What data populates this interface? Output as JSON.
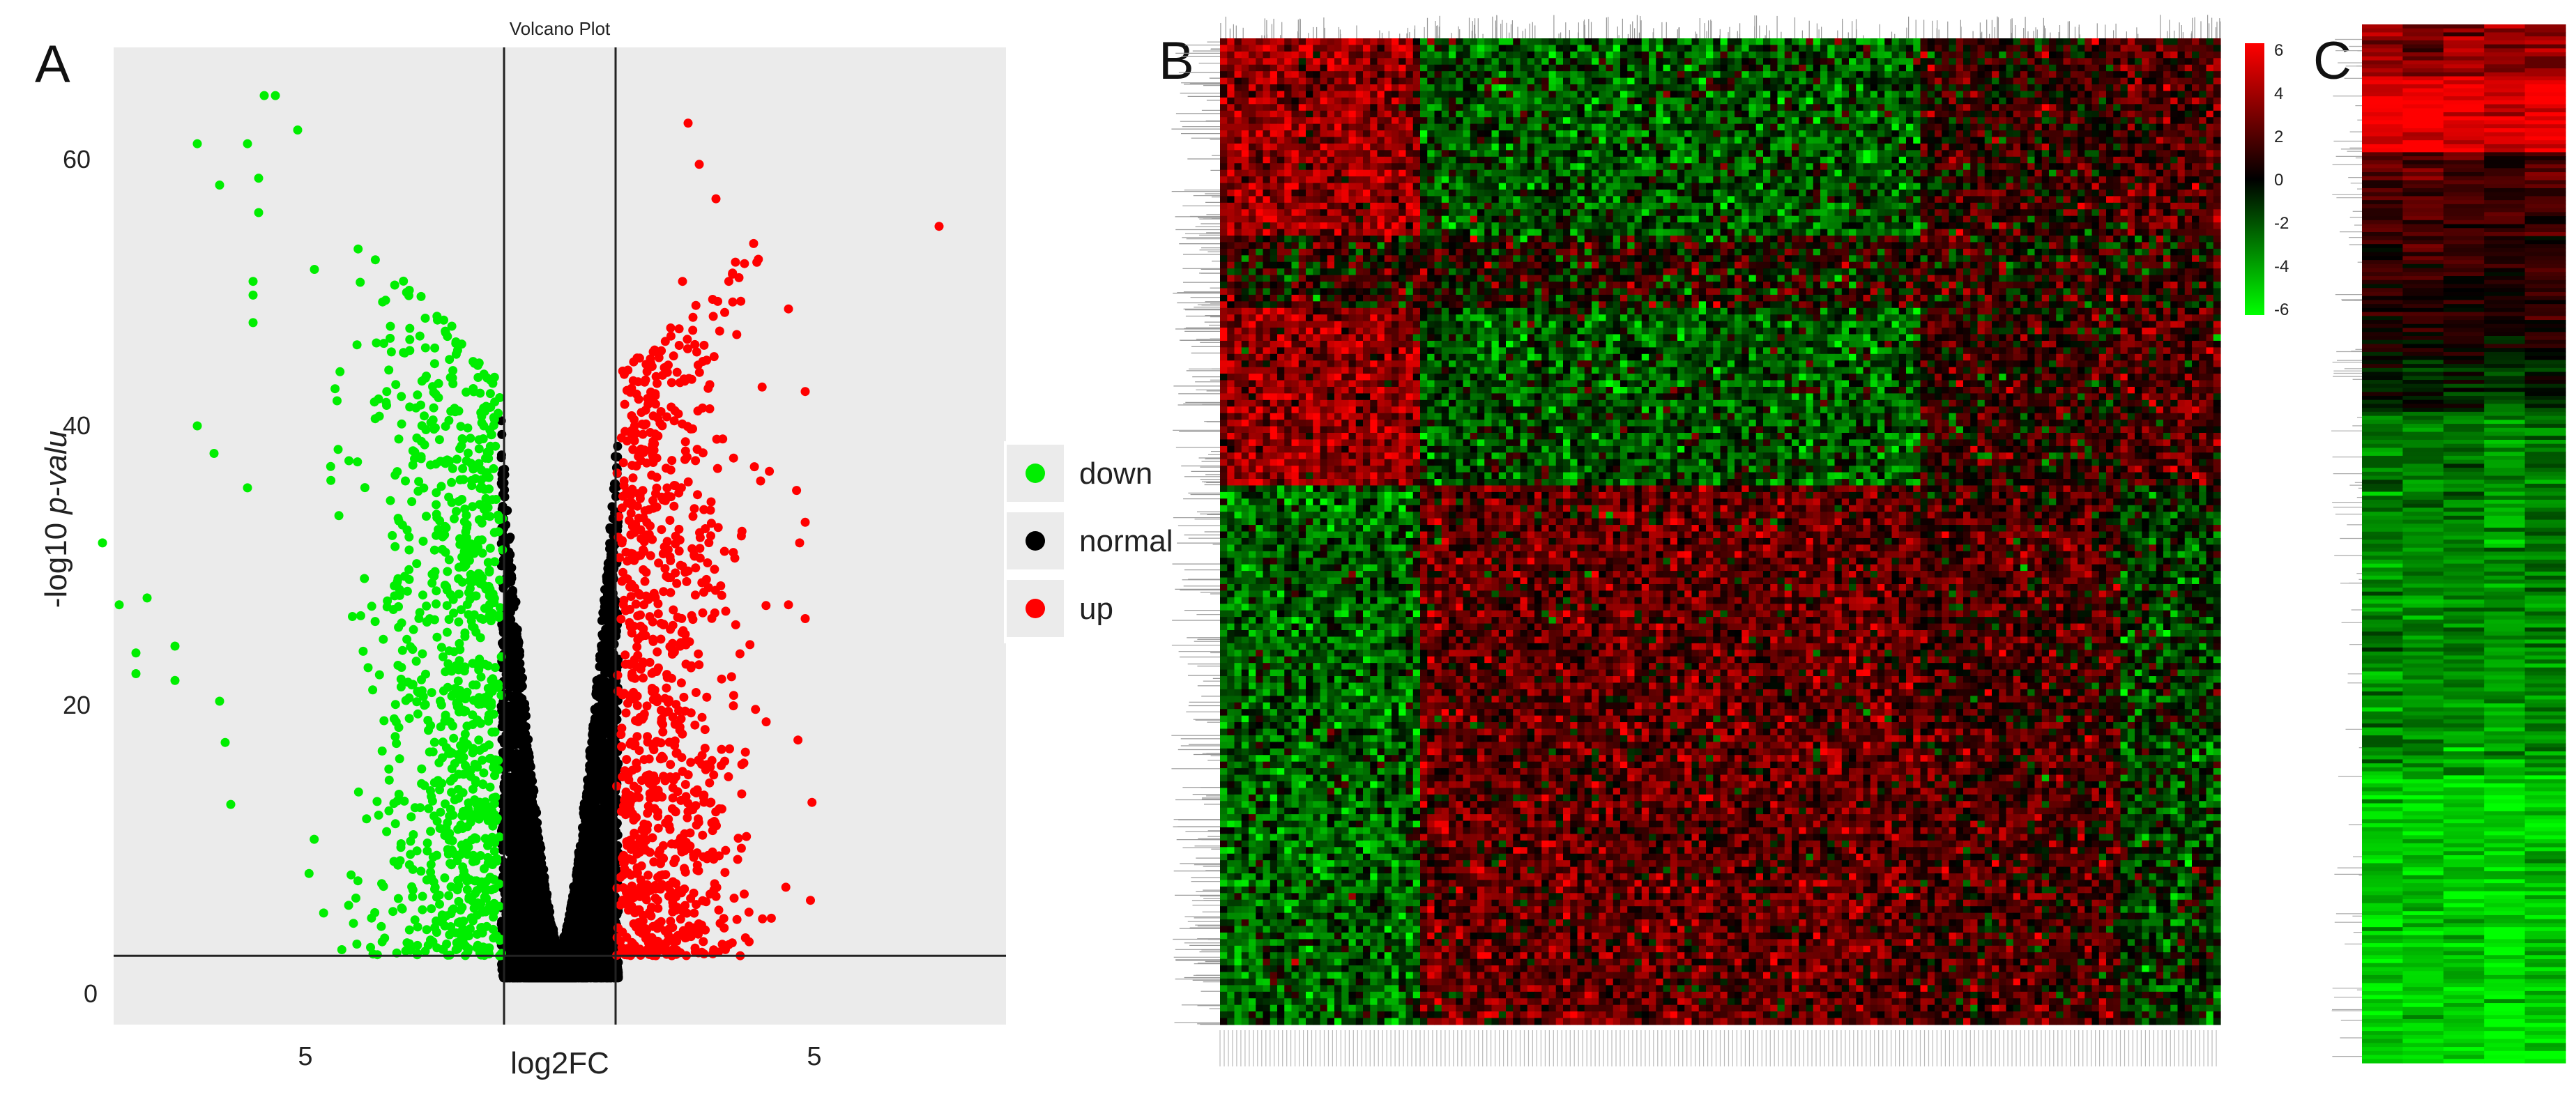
{
  "panels": {
    "a_label": "A",
    "b_label": "B",
    "c_label": "C"
  },
  "chart_data": [
    {
      "type": "scatter",
      "panel": "A",
      "title": "Volcano Plot",
      "xlabel": "log2FC",
      "ylabel": "-log10 p-valu",
      "xtick_labels": [
        "5",
        "5"
      ],
      "ytick_labels": [
        "0",
        "20",
        "40",
        "60"
      ],
      "xlim": [
        -8,
        8
      ],
      "ylim": [
        -3,
        68
      ],
      "grid": false,
      "background": "#ebebeb",
      "threshold_lines": {
        "log2fc": [
          -1,
          1
        ],
        "neglog10p": 2
      },
      "legend_position": "right",
      "series": [
        {
          "name": "down",
          "color": "#00ee00"
        },
        {
          "name": "normal",
          "color": "#000000"
        },
        {
          "name": "up",
          "color": "#ff0000"
        }
      ],
      "highlighted_points": {
        "down": [
          [
            -5.3,
            64.5
          ],
          [
            -5.1,
            64.5
          ],
          [
            -4.7,
            62.0
          ],
          [
            -6.5,
            61.0
          ],
          [
            -6.1,
            58.0
          ],
          [
            -5.6,
            61.0
          ],
          [
            -5.4,
            58.5
          ],
          [
            -5.4,
            56.0
          ],
          [
            -5.5,
            51.0
          ],
          [
            -5.5,
            50.0
          ],
          [
            -5.5,
            48.0
          ],
          [
            -8.2,
            32.0
          ],
          [
            -7.9,
            27.5
          ],
          [
            -7.4,
            28.0
          ],
          [
            -7.6,
            24.0
          ],
          [
            -7.6,
            22.5
          ],
          [
            -6.9,
            24.5
          ],
          [
            -6.9,
            22.0
          ],
          [
            -6.5,
            40.5
          ],
          [
            -6.2,
            38.5
          ],
          [
            -6.1,
            20.5
          ],
          [
            -6.0,
            17.5
          ],
          [
            -5.9,
            13.0
          ],
          [
            -5.6,
            36.0
          ]
        ],
        "up": [
          [
            2.3,
            62.5
          ],
          [
            2.5,
            59.5
          ],
          [
            2.8,
            57.0
          ],
          [
            6.8,
            55.0
          ],
          [
            2.2,
            51.0
          ],
          [
            3.1,
            49.5
          ],
          [
            4.1,
            49.0
          ],
          [
            4.4,
            43.0
          ],
          [
            3.6,
            36.5
          ],
          [
            4.4,
            33.5
          ],
          [
            4.3,
            32.0
          ],
          [
            4.1,
            27.5
          ],
          [
            4.4,
            26.5
          ],
          [
            3.7,
            19.0
          ],
          [
            2.9,
            17.0
          ],
          [
            3.3,
            16.0
          ]
        ]
      },
      "down_count_approx": 900,
      "up_count_approx": 900,
      "normal_count_approx": 6000
    },
    {
      "type": "heatmap",
      "panel": "B",
      "colorbar": {
        "ticks": [
          "6",
          "4",
          "2",
          "0",
          "-2",
          "-4",
          "-6"
        ],
        "range": [
          -6,
          6
        ],
        "colors": [
          "#00ff00",
          "#000000",
          "#ff0000"
        ]
      },
      "clustered": true,
      "row_dendrogram": "left",
      "column_dendrogram": "top"
    },
    {
      "type": "heatmap",
      "panel": "C",
      "clustered": true,
      "row_dendrogram": "left",
      "colors": [
        "#00ff00",
        "#000000",
        "#ff0000"
      ]
    }
  ],
  "legend": {
    "items": [
      {
        "label": "down",
        "color": "#00ee00"
      },
      {
        "label": "normal",
        "color": "#000000"
      },
      {
        "label": "up",
        "color": "#ff0000"
      }
    ]
  }
}
